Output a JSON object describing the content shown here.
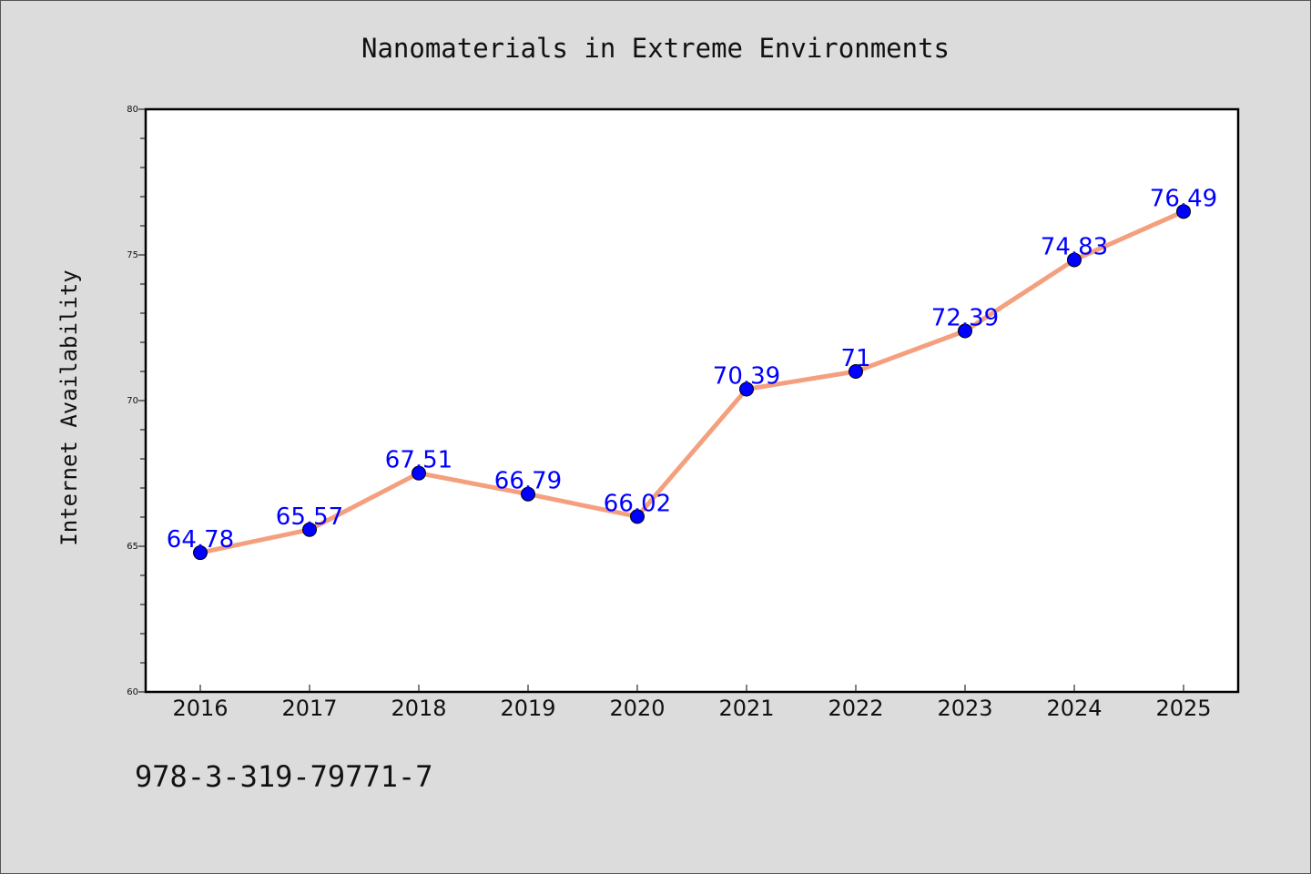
{
  "chart_data": {
    "type": "line",
    "title": "Nanomaterials in Extreme Environments",
    "xlabel": "",
    "ylabel": "Internet Availability",
    "categories": [
      "2016",
      "2017",
      "2018",
      "2019",
      "2020",
      "2021",
      "2022",
      "2023",
      "2024",
      "2025"
    ],
    "series": [
      {
        "values": [
          64.78,
          65.57,
          67.51,
          66.79,
          66.02,
          70.39,
          71,
          72.39,
          74.83,
          76.49
        ],
        "data_labels": [
          "64.78",
          "65.57",
          "67.51",
          "66.79",
          "66.02",
          "70.39",
          "71",
          "72.39",
          "74.83",
          "76.49"
        ],
        "line_color": "#f4a07f",
        "marker_color": "#0000ff"
      }
    ],
    "ylim": [
      60,
      80
    ],
    "yticks": [
      "60",
      "65",
      "70",
      "75",
      "80"
    ],
    "grid": false,
    "legend": "none"
  },
  "footnote": "978-3-319-79771-7",
  "colors": {
    "background": "#dcdcdc",
    "plot_area": "#ffffff",
    "data_label": "#0000ff"
  }
}
